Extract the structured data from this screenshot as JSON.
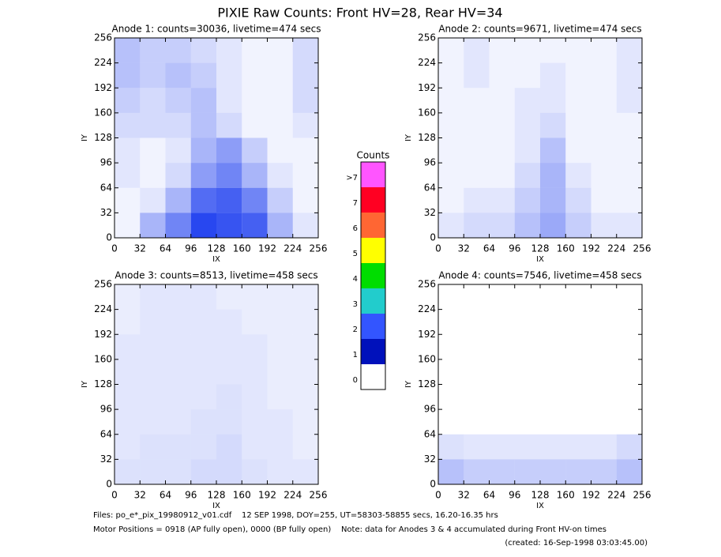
{
  "title": "PIXIE Raw Counts:  Front HV=28, Rear HV=34",
  "chart_data": [
    {
      "type": "heatmap",
      "title": "Anode 1: counts=30036, livetime=474 secs",
      "xlabel": "IX",
      "ylabel": "IY",
      "xlim": [
        0,
        256
      ],
      "ylim": [
        0,
        256
      ],
      "xticks": [
        0,
        32,
        64,
        96,
        128,
        160,
        192,
        224,
        256
      ],
      "yticks": [
        0,
        32,
        64,
        96,
        128,
        160,
        192,
        224,
        256
      ],
      "color": "#1133ee",
      "z": [
        [
          0.5,
          0.4,
          0.4,
          0.3,
          0.2,
          0.1,
          0.1,
          0.3
        ],
        [
          0.5,
          0.4,
          0.5,
          0.4,
          0.2,
          0.1,
          0.1,
          0.3
        ],
        [
          0.4,
          0.3,
          0.4,
          0.5,
          0.2,
          0.1,
          0.1,
          0.3
        ],
        [
          0.3,
          0.3,
          0.3,
          0.5,
          0.3,
          0.1,
          0.1,
          0.2
        ],
        [
          0.2,
          0.1,
          0.2,
          0.6,
          0.8,
          0.4,
          0.1,
          0.1
        ],
        [
          0.2,
          0.1,
          0.3,
          0.8,
          1.0,
          0.6,
          0.2,
          0.1
        ],
        [
          0.1,
          0.2,
          0.6,
          1.2,
          1.3,
          1.0,
          0.4,
          0.1
        ],
        [
          0.1,
          0.6,
          1.0,
          1.5,
          1.4,
          1.3,
          0.6,
          0.2
        ]
      ]
    },
    {
      "type": "heatmap",
      "title": "Anode 2: counts=9671, livetime=474 secs",
      "xlabel": "IX",
      "ylabel": "IY",
      "xlim": [
        0,
        256
      ],
      "ylim": [
        0,
        256
      ],
      "xticks": [
        0,
        32,
        64,
        96,
        128,
        160,
        192,
        224,
        256
      ],
      "yticks": [
        0,
        32,
        64,
        96,
        128,
        160,
        192,
        224,
        256
      ],
      "color": "#1133ee",
      "z": [
        [
          0.1,
          0.2,
          0.1,
          0.1,
          0.1,
          0.1,
          0.1,
          0.2
        ],
        [
          0.1,
          0.2,
          0.1,
          0.1,
          0.2,
          0.1,
          0.1,
          0.2
        ],
        [
          0.1,
          0.1,
          0.1,
          0.2,
          0.2,
          0.1,
          0.1,
          0.2
        ],
        [
          0.1,
          0.1,
          0.1,
          0.2,
          0.3,
          0.1,
          0.1,
          0.1
        ],
        [
          0.1,
          0.1,
          0.1,
          0.2,
          0.5,
          0.1,
          0.1,
          0.1
        ],
        [
          0.1,
          0.1,
          0.1,
          0.3,
          0.6,
          0.2,
          0.1,
          0.1
        ],
        [
          0.1,
          0.2,
          0.2,
          0.4,
          0.6,
          0.3,
          0.1,
          0.1
        ],
        [
          0.2,
          0.3,
          0.3,
          0.5,
          0.7,
          0.4,
          0.2,
          0.2
        ]
      ]
    },
    {
      "type": "heatmap",
      "title": "Anode 3: counts=8513, livetime=458 secs",
      "xlabel": "IX",
      "ylabel": "IY",
      "xlim": [
        0,
        256
      ],
      "ylim": [
        0,
        256
      ],
      "xticks": [
        0,
        32,
        64,
        96,
        128,
        160,
        192,
        224,
        256
      ],
      "yticks": [
        0,
        32,
        64,
        96,
        128,
        160,
        192,
        224,
        256
      ],
      "color": "#1133ee",
      "z": [
        [
          0.15,
          0.2,
          0.2,
          0.2,
          0.15,
          0.15,
          0.15,
          0.15
        ],
        [
          0.15,
          0.2,
          0.2,
          0.2,
          0.2,
          0.15,
          0.15,
          0.15
        ],
        [
          0.2,
          0.2,
          0.2,
          0.2,
          0.2,
          0.2,
          0.15,
          0.15
        ],
        [
          0.2,
          0.2,
          0.2,
          0.2,
          0.2,
          0.2,
          0.15,
          0.15
        ],
        [
          0.2,
          0.2,
          0.2,
          0.2,
          0.25,
          0.2,
          0.15,
          0.15
        ],
        [
          0.2,
          0.2,
          0.2,
          0.25,
          0.25,
          0.2,
          0.2,
          0.15
        ],
        [
          0.2,
          0.25,
          0.25,
          0.25,
          0.3,
          0.2,
          0.2,
          0.15
        ],
        [
          0.25,
          0.25,
          0.25,
          0.3,
          0.3,
          0.25,
          0.2,
          0.2
        ]
      ]
    },
    {
      "type": "heatmap",
      "title": "Anode 4: counts=7546, livetime=458 secs",
      "xlabel": "IX",
      "ylabel": "IY",
      "xlim": [
        0,
        256
      ],
      "ylim": [
        0,
        256
      ],
      "xticks": [
        0,
        32,
        64,
        96,
        128,
        160,
        192,
        224,
        256
      ],
      "yticks": [
        0,
        32,
        64,
        96,
        128,
        160,
        192,
        224,
        256
      ],
      "color": "#1133ee",
      "z": [
        [
          0,
          0,
          0,
          0,
          0,
          0,
          0,
          0
        ],
        [
          0,
          0,
          0,
          0,
          0,
          0,
          0,
          0
        ],
        [
          0,
          0,
          0,
          0,
          0,
          0,
          0,
          0
        ],
        [
          0,
          0,
          0,
          0,
          0,
          0,
          0,
          0
        ],
        [
          0,
          0,
          0,
          0,
          0,
          0,
          0,
          0
        ],
        [
          0,
          0,
          0,
          0,
          0,
          0,
          0,
          0
        ],
        [
          0.25,
          0.2,
          0.2,
          0.2,
          0.2,
          0.2,
          0.2,
          0.3
        ],
        [
          0.5,
          0.4,
          0.4,
          0.4,
          0.4,
          0.4,
          0.4,
          0.5
        ]
      ]
    }
  ],
  "colorbar": {
    "title": "Counts",
    "labels": [
      ">7",
      "7",
      "6",
      "5",
      "4",
      "3",
      "2",
      "1",
      "0"
    ],
    "colors": [
      "#ff55ff",
      "#ff0022",
      "#ff6633",
      "#ffff00",
      "#00dd00",
      "#22cccc",
      "#3355ff",
      "#0011bb",
      "#ffffff"
    ]
  },
  "footer": [
    "Files: po_e*_pix_19980912_v01.cdf    12 SEP 1998, DOY=255, UT=58303-58855 secs, 16.20-16.35 hrs",
    "Motor Positions = 0918 (AP fully open), 0000 (BP fully open)    Note: data for Anodes 3 & 4 accumulated during Front HV-on times",
    "(created: 16-Sep-1998 03:03:45.00)"
  ]
}
